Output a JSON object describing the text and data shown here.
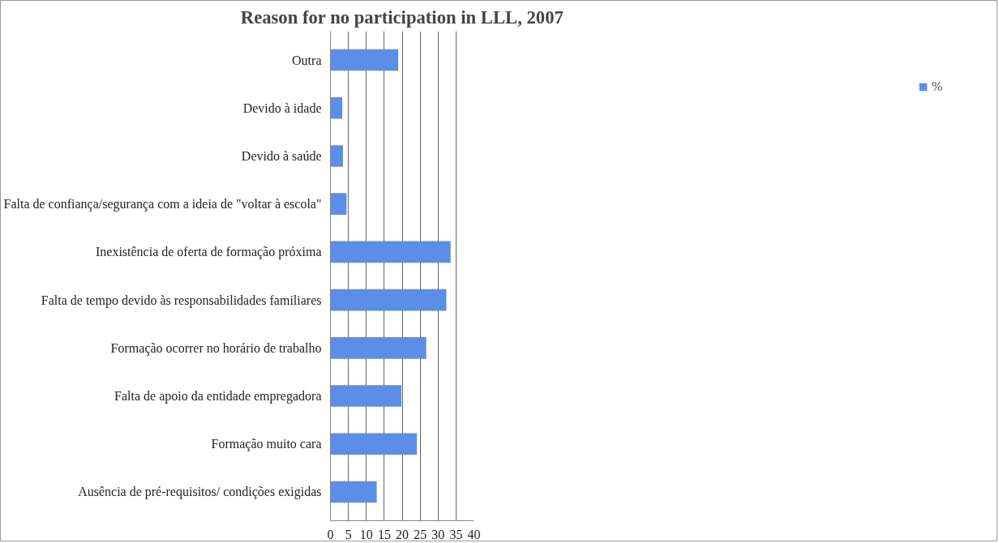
{
  "chart_data": {
    "type": "bar",
    "orientation": "horizontal",
    "title": "Reason for no participation in LLL, 2007",
    "categories": [
      "Outra",
      "Devido à idade",
      "Devido à saúde",
      "Falta de confiança/segurança com a ideia de \"voltar à escola\"",
      "Inexistência de oferta de formação próxima",
      "Falta de tempo devido às responsabilidades familiares",
      "Formação ocorrer no horário de trabalho",
      "Falta de apoio da entidade empregadora",
      "Formação muito cara",
      "Ausência de pré-requisitos/ condições exigidas"
    ],
    "series": [
      {
        "name": "%",
        "color": "#5b8ee6",
        "values": [
          18.9,
          3.3,
          3.5,
          4.5,
          33.5,
          32.3,
          26.7,
          19.8,
          24.1,
          12.9
        ]
      }
    ],
    "xlim": [
      0,
      40
    ],
    "xticks": [
      0,
      5,
      10,
      15,
      20,
      25,
      30,
      35,
      40
    ],
    "grid": "x",
    "legend": "right"
  }
}
